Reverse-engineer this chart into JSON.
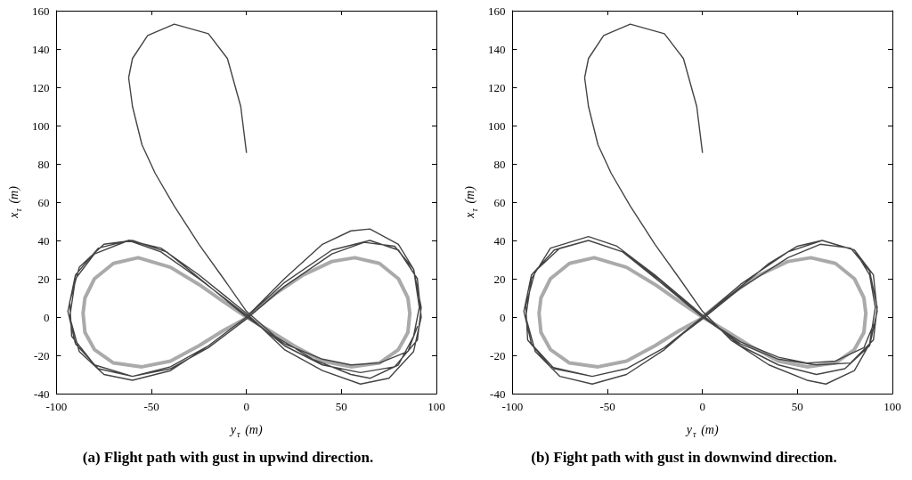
{
  "chart_data": [
    {
      "type": "line",
      "title": "(a) Flight path with gust in upwind direction.",
      "xlabel": "y$_{τ}$ (m)",
      "ylabel": "x$_{τ}$ (m)",
      "xlim": [
        -100,
        100
      ],
      "xticks": [
        -100,
        -50,
        0,
        50,
        100
      ],
      "ylim": [
        -40,
        160
      ],
      "yticks": [
        -40,
        -20,
        0,
        20,
        40,
        60,
        80,
        100,
        120,
        140,
        160
      ],
      "grid": false,
      "marker": "none",
      "series": [
        {
          "color": "#aaaaaa",
          "x": [
            0,
            15,
            30,
            45,
            57,
            70,
            80,
            85,
            86,
            85,
            80,
            70,
            55,
            40,
            25,
            12,
            0,
            -12,
            -25,
            -40,
            -57,
            -70,
            -80,
            -85,
            -86,
            -85,
            -80,
            -70,
            -55,
            -40,
            -25,
            -12,
            -1
          ],
          "values": [
            0,
            12,
            22,
            29,
            31,
            28,
            20,
            10,
            2,
            -8,
            -17,
            -24,
            -26,
            -23,
            -15,
            -7,
            0,
            8,
            17,
            26,
            31,
            28,
            20,
            10,
            2,
            -8,
            -17,
            -24,
            -26,
            -23,
            -15,
            -7,
            -1
          ]
        },
        {
          "color": "#444444",
          "x": [
            0,
            -3,
            -10,
            -20,
            -38,
            -52,
            -60,
            -62,
            -60,
            -55,
            -48,
            -38,
            -25,
            -12,
            0,
            15,
            35,
            55,
            65,
            80,
            88,
            91,
            88,
            80,
            65,
            55,
            40,
            20,
            0,
            -20,
            -40,
            -60,
            -75,
            -88,
            -93,
            -90,
            -80,
            -62,
            -45,
            -25,
            0,
            20,
            40,
            60,
            75,
            88,
            92,
            90,
            80,
            65,
            45,
            20,
            0,
            -20,
            -40,
            -60,
            -78,
            -90,
            -94,
            -90,
            -78,
            -62,
            -45,
            -25,
            0,
            20,
            40,
            60,
            78,
            90,
            92,
            88,
            78,
            62,
            45,
            20,
            0,
            -20,
            -40,
            -60,
            -80,
            -92,
            -93,
            -88,
            -75,
            -60,
            -42,
            -22,
            0,
            20,
            40,
            55,
            70,
            85,
            90
          ],
          "values": [
            86,
            110,
            135,
            148,
            153,
            147,
            135,
            125,
            110,
            90,
            75,
            58,
            38,
            20,
            3,
            -10,
            -22,
            -30,
            -32,
            -25,
            -10,
            5,
            25,
            38,
            46,
            45,
            38,
            20,
            0,
            -15,
            -28,
            -33,
            -30,
            -18,
            0,
            20,
            33,
            40,
            36,
            22,
            2,
            -17,
            -28,
            -35,
            -32,
            -18,
            0,
            20,
            35,
            40,
            35,
            18,
            0,
            -15,
            -26,
            -31,
            -27,
            -14,
            3,
            22,
            36,
            40,
            34,
            20,
            1,
            -15,
            -25,
            -29,
            -26,
            -12,
            5,
            25,
            37,
            39,
            33,
            16,
            -1,
            -16,
            -27,
            -31,
            -25,
            -10,
            8,
            26,
            38,
            40,
            34,
            18,
            0,
            -14,
            -22,
            -25,
            -24,
            -18,
            -5
          ]
        }
      ]
    },
    {
      "type": "line",
      "title": "(b) Fight path with gust in downwind direction.",
      "xlabel": "y$_{τ}$ (m)",
      "ylabel": "x$_{τ}$ (m)",
      "xlim": [
        -100,
        100
      ],
      "xticks": [
        -100,
        -50,
        0,
        50,
        100
      ],
      "ylim": [
        -40,
        160
      ],
      "yticks": [
        -40,
        -20,
        0,
        20,
        40,
        60,
        80,
        100,
        120,
        140,
        160
      ],
      "grid": false,
      "marker": "none",
      "series": [
        {
          "color": "#aaaaaa",
          "x": [
            0,
            15,
            30,
            45,
            57,
            70,
            80,
            85,
            86,
            85,
            80,
            70,
            55,
            40,
            25,
            12,
            0,
            -12,
            -25,
            -40,
            -57,
            -70,
            -80,
            -85,
            -86,
            -85,
            -80,
            -70,
            -55,
            -40,
            -25,
            -12,
            -1
          ],
          "values": [
            0,
            12,
            22,
            29,
            31,
            28,
            20,
            10,
            2,
            -8,
            -17,
            -24,
            -26,
            -23,
            -15,
            -7,
            0,
            8,
            17,
            26,
            31,
            28,
            20,
            10,
            2,
            -8,
            -17,
            -24,
            -26,
            -23,
            -15,
            -7,
            -1
          ]
        },
        {
          "color": "#444444",
          "x": [
            0,
            -3,
            -10,
            -20,
            -38,
            -52,
            -60,
            -62,
            -60,
            -55,
            -48,
            -38,
            -25,
            -12,
            0,
            15,
            35,
            55,
            65,
            80,
            88,
            91,
            88,
            80,
            63,
            50,
            35,
            18,
            0,
            -20,
            -40,
            -58,
            -75,
            -88,
            -93,
            -90,
            -80,
            -60,
            -45,
            -25,
            0,
            20,
            40,
            60,
            75,
            88,
            92,
            90,
            80,
            63,
            45,
            20,
            0,
            -20,
            -40,
            -58,
            -78,
            -90,
            -94,
            -90,
            -78,
            -60,
            -42,
            -22,
            0,
            20,
            40,
            60,
            78,
            90,
            92,
            88,
            78,
            62,
            45,
            20,
            0,
            -20,
            -40,
            -58,
            -80,
            -92,
            -93,
            -88,
            -75,
            -60,
            -42,
            -22,
            0,
            20,
            40,
            55,
            70,
            85,
            90
          ],
          "values": [
            86,
            110,
            135,
            148,
            153,
            147,
            135,
            125,
            110,
            90,
            75,
            58,
            38,
            20,
            3,
            -12,
            -25,
            -33,
            -35,
            -28,
            -14,
            5,
            22,
            35,
            40,
            37,
            28,
            14,
            0,
            -17,
            -30,
            -35,
            -31,
            -18,
            0,
            20,
            36,
            42,
            37,
            22,
            1,
            -15,
            -25,
            -30,
            -27,
            -15,
            3,
            22,
            35,
            40,
            34,
            17,
            0,
            -16,
            -27,
            -31,
            -27,
            -14,
            3,
            22,
            35,
            40,
            34,
            19,
            0,
            -14,
            -22,
            -25,
            -24,
            -12,
            5,
            24,
            36,
            38,
            31,
            15,
            -1,
            -16,
            -27,
            -31,
            -26,
            -12,
            6,
            24,
            36,
            40,
            34,
            18,
            0,
            -13,
            -21,
            -24,
            -23,
            -16,
            -4
          ]
        }
      ]
    }
  ]
}
